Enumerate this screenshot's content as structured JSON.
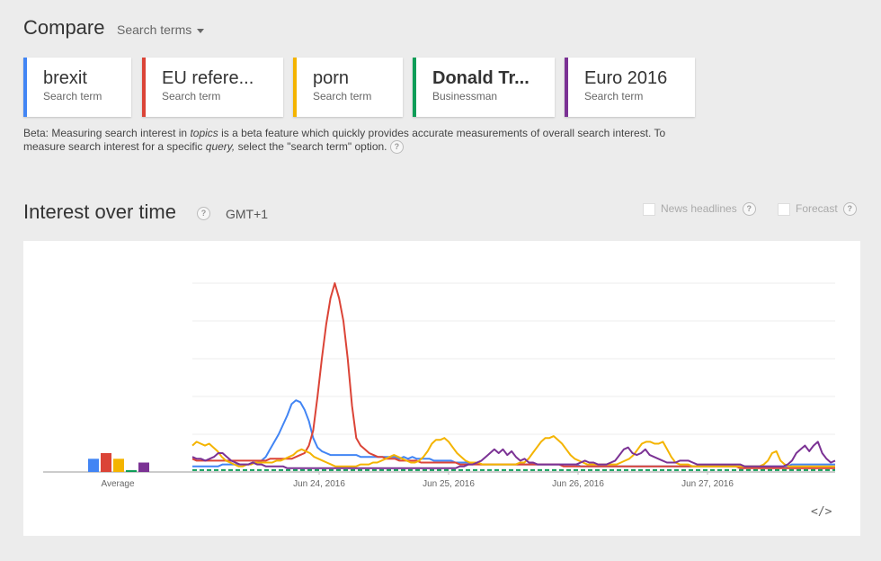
{
  "header": {
    "title": "Compare",
    "dropdown_label": "Search terms"
  },
  "cards": [
    {
      "term": "brexit",
      "subtitle": "Search term",
      "color": "#4285f4",
      "bold": false
    },
    {
      "term": "EU refere...",
      "subtitle": "Search term",
      "color": "#db4437",
      "bold": false
    },
    {
      "term": "porn",
      "subtitle": "Search term",
      "color": "#f4b400",
      "bold": false
    },
    {
      "term": "Donald Tr...",
      "subtitle": "Businessman",
      "color": "#0f9d58",
      "bold": true
    },
    {
      "term": "Euro 2016",
      "subtitle": "Search term",
      "color": "#7b3294",
      "bold": false
    }
  ],
  "beta_note": {
    "part1": "Beta: Measuring search interest in ",
    "em1": "topics",
    "part2": " is a beta feature which quickly provides accurate measurements of overall search interest. To measure search interest for a specific ",
    "em2": "query,",
    "part3": " select the \"search term\" option."
  },
  "section": {
    "title": "Interest over time",
    "timezone": "GMT+1",
    "news_headlines": "News headlines",
    "forecast": "Forecast",
    "help_glyph": "?"
  },
  "embed_label": "</>",
  "chart_data": {
    "type": "line",
    "x_tick_labels": [
      "Jun 24, 2016",
      "Jun 25, 2016",
      "Jun 26, 2016",
      "Jun 27, 2016"
    ],
    "average_label": "Average",
    "ylim": [
      0,
      100
    ],
    "grid": true,
    "averages": [
      {
        "name": "brexit",
        "value": 7,
        "color": "#4285f4"
      },
      {
        "name": "EU refere...",
        "value": 10,
        "color": "#db4437"
      },
      {
        "name": "porn",
        "value": 7,
        "color": "#f4b400"
      },
      {
        "name": "Donald Tr...",
        "value": 1,
        "color": "#0f9d58"
      },
      {
        "name": "Euro 2016",
        "value": 5,
        "color": "#7b3294"
      }
    ],
    "series": [
      {
        "name": "brexit",
        "color": "#4285f4",
        "values": [
          3,
          3,
          3,
          3,
          3,
          3,
          3,
          4,
          4,
          4,
          4,
          4,
          4,
          4,
          5,
          5,
          6,
          8,
          12,
          16,
          20,
          25,
          30,
          36,
          38,
          37,
          33,
          27,
          18,
          13,
          11,
          10,
          9,
          9,
          9,
          9,
          9,
          9,
          9,
          8,
          8,
          8,
          8,
          8,
          8,
          8,
          8,
          8,
          7,
          8,
          7,
          8,
          7,
          7,
          7,
          7,
          6,
          6,
          6,
          6,
          6,
          5,
          5,
          5,
          5,
          5,
          5,
          4,
          4,
          4,
          4,
          4,
          4,
          4,
          4,
          4,
          4,
          4,
          4,
          4,
          4,
          4,
          4,
          4,
          4,
          4,
          4,
          4,
          4,
          4,
          3,
          3,
          3,
          3,
          3,
          3,
          3,
          3,
          3,
          3,
          3,
          3,
          3,
          3,
          3,
          3,
          3,
          3,
          3,
          3,
          3,
          3,
          3,
          3,
          3,
          3,
          3,
          3,
          3,
          3,
          3,
          3,
          3,
          3,
          3,
          3,
          3,
          3,
          3,
          3,
          3,
          3,
          3,
          3,
          3,
          3,
          3,
          3,
          3,
          4,
          4,
          4,
          4,
          4,
          4,
          4,
          4,
          4,
          4,
          4
        ]
      },
      {
        "name": "EU refere...",
        "color": "#db4437",
        "values": [
          7,
          6,
          6,
          6,
          6,
          6,
          6,
          6,
          6,
          6,
          6,
          6,
          6,
          6,
          6,
          6,
          6,
          6,
          7,
          7,
          7,
          7,
          7,
          7,
          8,
          9,
          10,
          14,
          22,
          40,
          60,
          78,
          92,
          100,
          92,
          80,
          60,
          35,
          18,
          14,
          12,
          10,
          9,
          8,
          8,
          7,
          7,
          7,
          6,
          6,
          6,
          6,
          6,
          5,
          5,
          5,
          5,
          5,
          5,
          5,
          5,
          5,
          4,
          4,
          4,
          4,
          4,
          4,
          4,
          4,
          4,
          4,
          4,
          4,
          4,
          4,
          4,
          4,
          4,
          4,
          4,
          4,
          4,
          4,
          4,
          4,
          3,
          3,
          3,
          3,
          3,
          3,
          3,
          3,
          3,
          3,
          3,
          3,
          3,
          3,
          3,
          3,
          3,
          3,
          3,
          3,
          3,
          3,
          3,
          3,
          3,
          3,
          3,
          3,
          3,
          3,
          3,
          3,
          3,
          3,
          3,
          3,
          3,
          3,
          3,
          3,
          3,
          2,
          2,
          2,
          2,
          2,
          2,
          2,
          2,
          2,
          2,
          2,
          2,
          2,
          2,
          2,
          2,
          2,
          2,
          2,
          2,
          2,
          2,
          2
        ]
      },
      {
        "name": "porn",
        "color": "#f4b400",
        "values": [
          14,
          16,
          15,
          14,
          15,
          13,
          11,
          8,
          6,
          5,
          4,
          3,
          3,
          4,
          4,
          5,
          5,
          5,
          5,
          5,
          6,
          6,
          7,
          8,
          9,
          11,
          12,
          11,
          10,
          8,
          7,
          6,
          5,
          4,
          3,
          3,
          3,
          3,
          3,
          3,
          4,
          4,
          4,
          5,
          5,
          6,
          7,
          8,
          9,
          8,
          7,
          6,
          5,
          5,
          6,
          8,
          11,
          15,
          17,
          17,
          18,
          16,
          13,
          10,
          8,
          6,
          5,
          5,
          5,
          4,
          4,
          4,
          4,
          4,
          4,
          4,
          4,
          4,
          5,
          5,
          7,
          10,
          13,
          16,
          18,
          18,
          19,
          17,
          15,
          12,
          9,
          7,
          6,
          5,
          4,
          4,
          4,
          4,
          4,
          4,
          4,
          4,
          5,
          6,
          7,
          9,
          12,
          15,
          16,
          16,
          15,
          15,
          16,
          12,
          8,
          5,
          4,
          4,
          4,
          3,
          3,
          3,
          3,
          3,
          3,
          3,
          3,
          3,
          3,
          3,
          3,
          3,
          3,
          3,
          3,
          3,
          4,
          6,
          10,
          11,
          6,
          4,
          3,
          3,
          3,
          3,
          3,
          3,
          3,
          3,
          3,
          3,
          3,
          3
        ]
      },
      {
        "name": "Donald Tr...",
        "color": "#0f9d58",
        "values": [
          1,
          1,
          1,
          1,
          1,
          1,
          1,
          1,
          1,
          1,
          1,
          1,
          1,
          1,
          1,
          1,
          1,
          1,
          1,
          1,
          1,
          1,
          1,
          1,
          1,
          1,
          1,
          1,
          1,
          1,
          1,
          1,
          1,
          1,
          1,
          1,
          1,
          1,
          1,
          1,
          1,
          1,
          1,
          1,
          1,
          1,
          1,
          1,
          1,
          1,
          1,
          1,
          1,
          1,
          1,
          1,
          1,
          1,
          1,
          1,
          1,
          1,
          1,
          1,
          1,
          1,
          1,
          1,
          1,
          1,
          1,
          1,
          1,
          1,
          1,
          1,
          1,
          1,
          1,
          1,
          1,
          1,
          1,
          1,
          1,
          1,
          1,
          1,
          1,
          1,
          1,
          1,
          1,
          1,
          1,
          1,
          1,
          1,
          1,
          1,
          1,
          1,
          1,
          1,
          1,
          1,
          1,
          1,
          1,
          1,
          1,
          1,
          1,
          1,
          1,
          1,
          1,
          1,
          1,
          1,
          1,
          1,
          1,
          1,
          1,
          1,
          1,
          1,
          1,
          1,
          1,
          1,
          1,
          1,
          1,
          1,
          1,
          1,
          1,
          1,
          1,
          1,
          1,
          1,
          1,
          1,
          1,
          1,
          1,
          1
        ]
      },
      {
        "name": "Euro 2016",
        "color": "#7b3294",
        "values": [
          8,
          7,
          7,
          6,
          7,
          8,
          10,
          10,
          8,
          6,
          5,
          4,
          4,
          4,
          5,
          4,
          4,
          3,
          3,
          3,
          3,
          3,
          2,
          2,
          2,
          2,
          2,
          2,
          2,
          2,
          2,
          2,
          2,
          2,
          2,
          2,
          2,
          2,
          2,
          2,
          2,
          2,
          2,
          2,
          2,
          2,
          2,
          2,
          2,
          2,
          2,
          2,
          2,
          2,
          2,
          2,
          2,
          2,
          2,
          2,
          2,
          2,
          3,
          3,
          4,
          4,
          5,
          6,
          8,
          10,
          12,
          10,
          12,
          9,
          11,
          8,
          6,
          7,
          5,
          5,
          4,
          4,
          4,
          4,
          4,
          4,
          4,
          4,
          4,
          4,
          5,
          6,
          5,
          5,
          4,
          4,
          4,
          5,
          6,
          9,
          12,
          13,
          10,
          9,
          10,
          12,
          9,
          8,
          7,
          6,
          5,
          5,
          5,
          6,
          6,
          6,
          5,
          4,
          4,
          4,
          4,
          4,
          4,
          4,
          4,
          4,
          4,
          4,
          3,
          3,
          3,
          3,
          3,
          3,
          3,
          3,
          3,
          3,
          4,
          6,
          10,
          12,
          14,
          11,
          14,
          16,
          10,
          7,
          5,
          6
        ]
      }
    ]
  }
}
